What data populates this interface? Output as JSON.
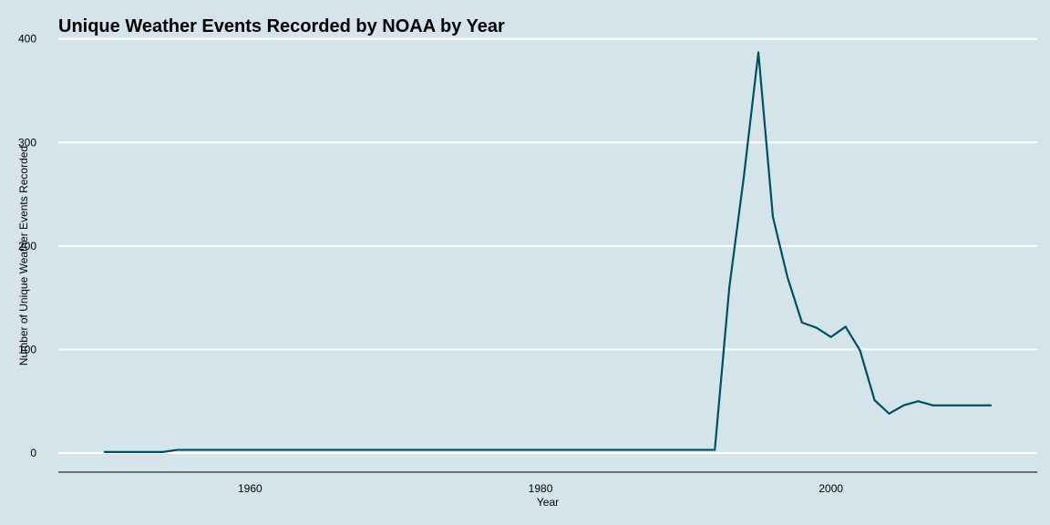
{
  "chart_data": {
    "type": "line",
    "title": "Unique Weather Events Recorded by NOAA by Year",
    "xlabel": "Year",
    "ylabel": "Number of Unique Weather Events Recorded",
    "xlim": [
      1946.8,
      2014.2
    ],
    "ylim": [
      -18.5,
      405
    ],
    "x_ticks": [
      1960,
      1980,
      2000
    ],
    "y_ticks": [
      0,
      100,
      200,
      300,
      400
    ],
    "grid": "horizontal",
    "legend": "none",
    "colors": {
      "background": "#d5e4eb",
      "gridline": "#ffffff",
      "line": "#014d64",
      "axis": "#000000"
    },
    "series": [
      {
        "x": [
          1950,
          1951,
          1952,
          1953,
          1954,
          1955,
          1956,
          1957,
          1958,
          1959,
          1960,
          1961,
          1962,
          1963,
          1964,
          1965,
          1966,
          1967,
          1968,
          1969,
          1970,
          1971,
          1972,
          1973,
          1974,
          1975,
          1976,
          1977,
          1978,
          1979,
          1980,
          1981,
          1982,
          1983,
          1984,
          1985,
          1986,
          1987,
          1988,
          1989,
          1990,
          1991,
          1992,
          1993,
          1994,
          1995,
          1996,
          1997,
          1998,
          1999,
          2000,
          2001,
          2002,
          2003,
          2004,
          2005,
          2006,
          2007,
          2008,
          2009,
          2010,
          2011
        ],
        "values": [
          1,
          1,
          1,
          1,
          1,
          3,
          3,
          3,
          3,
          3,
          3,
          3,
          3,
          3,
          3,
          3,
          3,
          3,
          3,
          3,
          3,
          3,
          3,
          3,
          3,
          3,
          3,
          3,
          3,
          3,
          3,
          3,
          3,
          3,
          3,
          3,
          3,
          3,
          3,
          3,
          3,
          3,
          3,
          160,
          267,
          387,
          228,
          170,
          126,
          121,
          112,
          122,
          99,
          51,
          38,
          46,
          50,
          46,
          46,
          46,
          46,
          46
        ]
      }
    ]
  }
}
